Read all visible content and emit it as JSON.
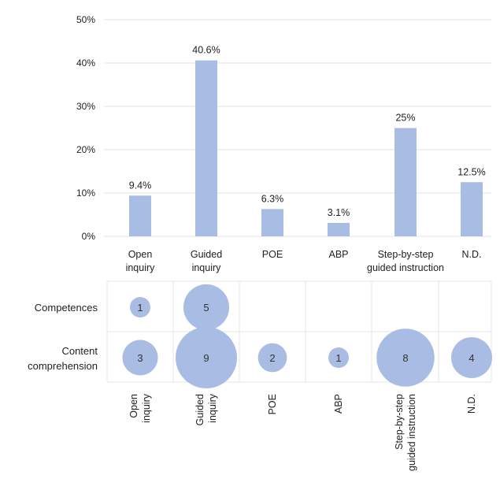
{
  "chart_data": [
    {
      "type": "bar",
      "categories": [
        [
          "Open",
          "inquiry"
        ],
        [
          "Guided",
          "inquiry"
        ],
        [
          "POE"
        ],
        [
          "ABP"
        ],
        [
          "Step-by-step",
          "guided instruction"
        ],
        [
          "N.D."
        ]
      ],
      "values": [
        9.4,
        40.6,
        6.3,
        3.1,
        25,
        12.5
      ],
      "data_labels": [
        "9.4%",
        "40.6%",
        "6.3%",
        "3.1%",
        "25%",
        "12.5%"
      ],
      "yticks": [
        "0%",
        "10%",
        "20%",
        "30%",
        "40%",
        "50%"
      ],
      "ylim": [
        0,
        50
      ],
      "grid": true,
      "color": "#a9bce3"
    },
    {
      "type": "bubble",
      "rows": [
        [
          "Competences"
        ],
        [
          "Content",
          "comprehension"
        ]
      ],
      "columns": [
        [
          "Open",
          "inquiry"
        ],
        [
          "Guided",
          "inquiry"
        ],
        [
          "POE"
        ],
        [
          "ABP"
        ],
        [
          "Step-by-step",
          "guided instruction"
        ],
        [
          "N.D."
        ]
      ],
      "values": [
        [
          1,
          5,
          null,
          null,
          null,
          null
        ],
        [
          3,
          9,
          2,
          1,
          8,
          4
        ]
      ],
      "color": "#a9bce3"
    }
  ]
}
